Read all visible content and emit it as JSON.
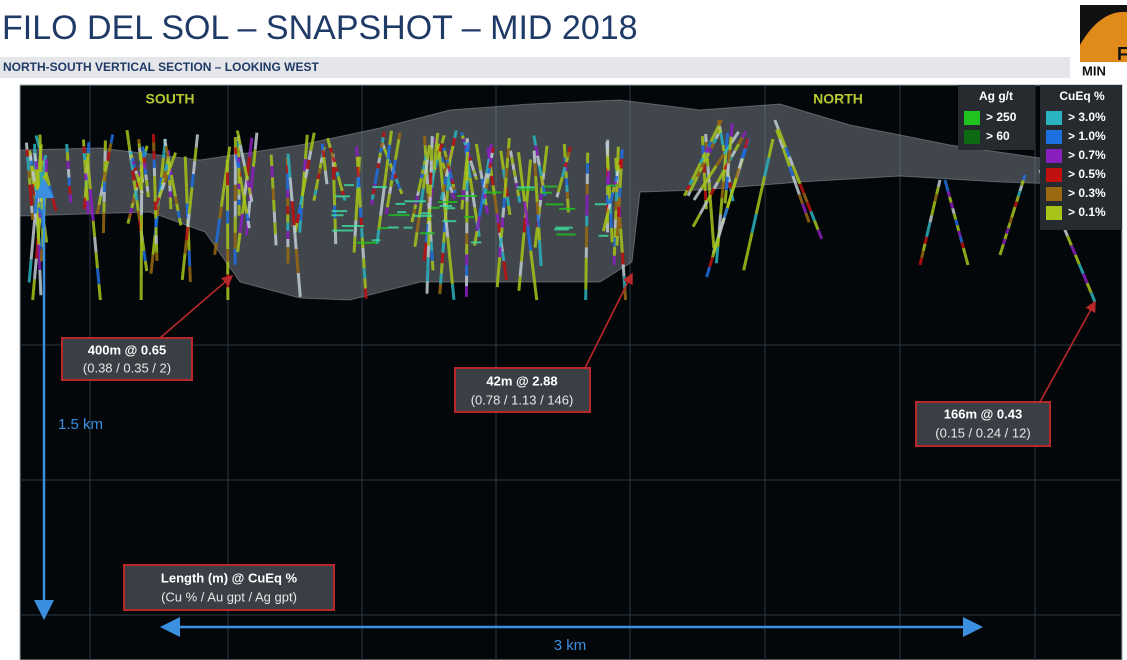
{
  "header": {
    "title": "FILO DEL SOL – SNAPSHOT – MID 2018",
    "subtitle": "NORTH-SOUTH VERTICAL SECTION – LOOKING WEST",
    "logo_letter": "F",
    "logo_text": "MIN"
  },
  "section": {
    "south": "SOUTH",
    "north": "NORTH",
    "height_label": "1.5 km",
    "width_label": "3 km"
  },
  "legend_ag": {
    "title": "Ag g/t",
    "items": [
      {
        "label": "> 250",
        "color": "#1fc41f"
      },
      {
        "label": ">  60",
        "color": "#0b6a12"
      }
    ]
  },
  "legend_cueq": {
    "title": "CuEq %",
    "items": [
      {
        "label": "> 3.0%",
        "color": "#2ab3c0"
      },
      {
        "label": "> 1.0%",
        "color": "#1e6fe0"
      },
      {
        "label": "> 0.7%",
        "color": "#8a1fc0"
      },
      {
        "label": "> 0.5%",
        "color": "#c01010"
      },
      {
        "label": "> 0.3%",
        "color": "#9a6a10"
      },
      {
        "label": "> 0.1%",
        "color": "#a8c41a"
      }
    ]
  },
  "callouts": [
    {
      "headline": "400m @ 0.65",
      "detail": "(0.38 / 0.35 / 2)"
    },
    {
      "headline": "42m @ 2.88",
      "detail": "(0.78 / 1.13 / 146)"
    },
    {
      "headline": "166m @ 0.43",
      "detail": "(0.15 / 0.24 / 12)"
    }
  ],
  "key": {
    "headline": "Length (m) @ CuEq %",
    "detail": "(Cu % / Au gpt / Ag gpt)"
  }
}
